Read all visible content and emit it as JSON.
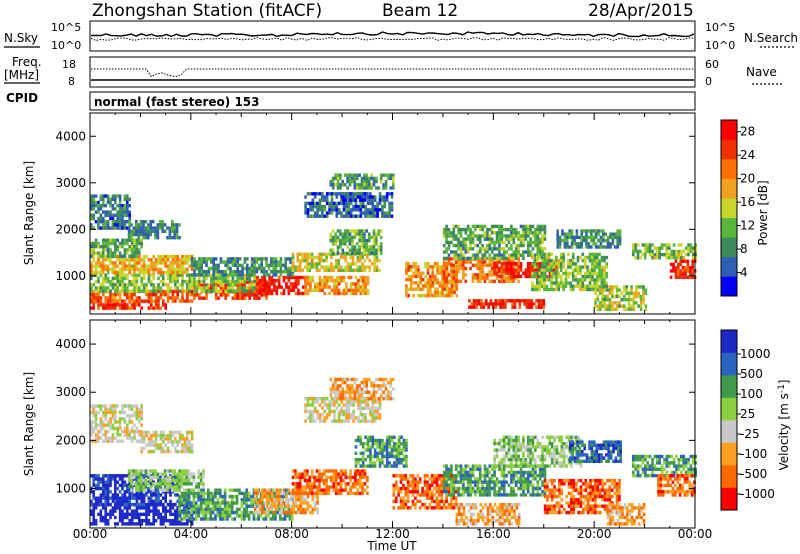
{
  "header": {
    "station": "Zhongshan Station (fitACF)",
    "beam": "Beam 12",
    "date": "28/Apr/2015"
  },
  "strip_sky": {
    "left_label": "N.Sky",
    "right_label": "N.Search",
    "left_ticks": [
      "10^5",
      "10^0"
    ],
    "right_ticks": [
      "10^5",
      "10^0"
    ]
  },
  "strip_freq": {
    "left_label_1": "Freq.",
    "left_label_2": "[MHz]",
    "right_label": "Nave",
    "left_ticks": [
      "18",
      "8"
    ],
    "right_ticks": [
      "60",
      "0"
    ]
  },
  "cpid": {
    "label": "CPID",
    "text": "normal (fast stereo) 153"
  },
  "colors": {
    "power": [
      "#0000ff",
      "#2f5fb4",
      "#3e8a5c",
      "#58b63a",
      "#c8d42a",
      "#f2a020",
      "#ff7000",
      "#f03000",
      "#ff0000"
    ],
    "velocity": [
      "#ff0000",
      "#ff6a00",
      "#ffa020",
      "#c8c8c8",
      "#8cd040",
      "#409a4c",
      "#2a64c0",
      "#1c28c8"
    ]
  },
  "chart_data": [
    {
      "type": "heatmap",
      "name": "power",
      "xlabel": "",
      "ylabel": "Slant Range [km]",
      "yticks": [
        1000,
        2000,
        3000,
        4000
      ],
      "ylim": [
        180,
        4500
      ],
      "x_ticks": [
        "00:00",
        "04:00",
        "08:00",
        "12:00",
        "16:00",
        "20:00",
        "00:00"
      ],
      "xlim_hours": [
        0,
        24
      ],
      "colorbar": {
        "label": "Power [dB]",
        "ticks": [
          4,
          8,
          12,
          16,
          20,
          24,
          28
        ],
        "range": [
          0,
          30
        ]
      },
      "regions": [
        {
          "t": [
            0.0,
            3.0
          ],
          "r": [
            300,
            480
          ],
          "v": 28
        },
        {
          "t": [
            0.0,
            4.0
          ],
          "r": [
            480,
            700
          ],
          "v": 24
        },
        {
          "t": [
            4.0,
            7.0
          ],
          "r": [
            500,
            900
          ],
          "v": 26
        },
        {
          "t": [
            6.5,
            8.5
          ],
          "r": [
            600,
            1000
          ],
          "v": 29
        },
        {
          "t": [
            0.0,
            6.5
          ],
          "r": [
            700,
            1050
          ],
          "v": 12
        },
        {
          "t": [
            8.5,
            11.0
          ],
          "r": [
            650,
            1000
          ],
          "v": 20
        },
        {
          "t": [
            0.0,
            4.0
          ],
          "r": [
            1050,
            1450
          ],
          "v": 18
        },
        {
          "t": [
            0.0,
            2.0
          ],
          "r": [
            1400,
            1800
          ],
          "v": 10
        },
        {
          "t": [
            4.0,
            8.0
          ],
          "r": [
            1050,
            1400
          ],
          "v": 8
        },
        {
          "t": [
            0.0,
            1.6
          ],
          "r": [
            2000,
            2750
          ],
          "v": 6
        },
        {
          "t": [
            1.5,
            3.5
          ],
          "r": [
            1800,
            2200
          ],
          "v": 7
        },
        {
          "t": [
            8.0,
            11.5
          ],
          "r": [
            1100,
            1500
          ],
          "v": 16
        },
        {
          "t": [
            9.5,
            11.5
          ],
          "r": [
            1500,
            2000
          ],
          "v": 10
        },
        {
          "t": [
            8.5,
            12.0
          ],
          "r": [
            2300,
            2800
          ],
          "v": 5
        },
        {
          "t": [
            9.5,
            12.0
          ],
          "r": [
            2900,
            3200
          ],
          "v": 9
        },
        {
          "t": [
            10.0,
            11.0
          ],
          "r": [
            2600,
            2800
          ],
          "v": 3
        },
        {
          "t": [
            12.5,
            14.5
          ],
          "r": [
            600,
            1300
          ],
          "v": 20
        },
        {
          "t": [
            14.0,
            17.0
          ],
          "r": [
            900,
            1400
          ],
          "v": 22
        },
        {
          "t": [
            16.0,
            18.5
          ],
          "r": [
            1000,
            1300
          ],
          "v": 29
        },
        {
          "t": [
            14.0,
            18.0
          ],
          "r": [
            1400,
            2100
          ],
          "v": 10
        },
        {
          "t": [
            15.0,
            18.0
          ],
          "r": [
            300,
            500
          ],
          "v": 27
        },
        {
          "t": [
            17.5,
            20.5
          ],
          "r": [
            700,
            1500
          ],
          "v": 12
        },
        {
          "t": [
            20.0,
            22.0
          ],
          "r": [
            300,
            800
          ],
          "v": 14
        },
        {
          "t": [
            21.5,
            24.0
          ],
          "r": [
            1400,
            1700
          ],
          "v": 12
        },
        {
          "t": [
            23.0,
            24.0
          ],
          "r": [
            950,
            1350
          ],
          "v": 28
        },
        {
          "t": [
            18.5,
            21.0
          ],
          "r": [
            1600,
            2000
          ],
          "v": 7
        }
      ]
    },
    {
      "type": "heatmap",
      "name": "velocity",
      "xlabel": "Time UT",
      "ylabel": "Slant Range [km]",
      "yticks": [
        1000,
        2000,
        3000,
        4000
      ],
      "ylim": [
        180,
        4500
      ],
      "x_ticks": [
        "00:00",
        "04:00",
        "08:00",
        "12:00",
        "16:00",
        "20:00",
        "00:00"
      ],
      "xlim_hours": [
        0,
        24
      ],
      "colorbar": {
        "label": "Velocity [m s^-1]",
        "ticks": [
          "1000",
          "500",
          "100",
          "25",
          "-25",
          "-100",
          "-500",
          "-1000"
        ]
      },
      "regions": [
        {
          "t": [
            0.0,
            4.0
          ],
          "r": [
            300,
            700
          ],
          "v": 8
        },
        {
          "t": [
            0.0,
            3.5
          ],
          "r": [
            700,
            1300
          ],
          "v": 7
        },
        {
          "t": [
            3.5,
            8.0
          ],
          "r": [
            400,
            1000
          ],
          "v": 5
        },
        {
          "t": [
            0.0,
            2.0
          ],
          "r": [
            2000,
            2750
          ],
          "v": 3
        },
        {
          "t": [
            2.0,
            4.0
          ],
          "r": [
            1800,
            2200
          ],
          "v": 3
        },
        {
          "t": [
            1.5,
            4.5
          ],
          "r": [
            1000,
            1400
          ],
          "v": 4
        },
        {
          "t": [
            6.5,
            9.0
          ],
          "r": [
            500,
            1000
          ],
          "v": 2
        },
        {
          "t": [
            8.0,
            11.0
          ],
          "r": [
            900,
            1400
          ],
          "v": 1
        },
        {
          "t": [
            8.5,
            11.5
          ],
          "r": [
            2400,
            2900
          ],
          "v": 3
        },
        {
          "t": [
            9.5,
            12.0
          ],
          "r": [
            2900,
            3300
          ],
          "v": 2
        },
        {
          "t": [
            10.5,
            12.5
          ],
          "r": [
            1500,
            2100
          ],
          "v": 5
        },
        {
          "t": [
            12.0,
            14.5
          ],
          "r": [
            600,
            1300
          ],
          "v": 1
        },
        {
          "t": [
            14.0,
            18.0
          ],
          "r": [
            900,
            1500
          ],
          "v": 5
        },
        {
          "t": [
            16.0,
            19.5
          ],
          "r": [
            1500,
            2100
          ],
          "v": 4
        },
        {
          "t": [
            14.5,
            17.0
          ],
          "r": [
            300,
            700
          ],
          "v": 2
        },
        {
          "t": [
            18.0,
            21.0
          ],
          "r": [
            500,
            1200
          ],
          "v": 1
        },
        {
          "t": [
            20.5,
            22.0
          ],
          "r": [
            300,
            700
          ],
          "v": 2
        },
        {
          "t": [
            21.5,
            24.0
          ],
          "r": [
            1300,
            1700
          ],
          "v": 5
        },
        {
          "t": [
            22.5,
            24.0
          ],
          "r": [
            900,
            1300
          ],
          "v": 1
        },
        {
          "t": [
            19.0,
            21.0
          ],
          "r": [
            1600,
            2000
          ],
          "v": 6
        }
      ]
    }
  ]
}
